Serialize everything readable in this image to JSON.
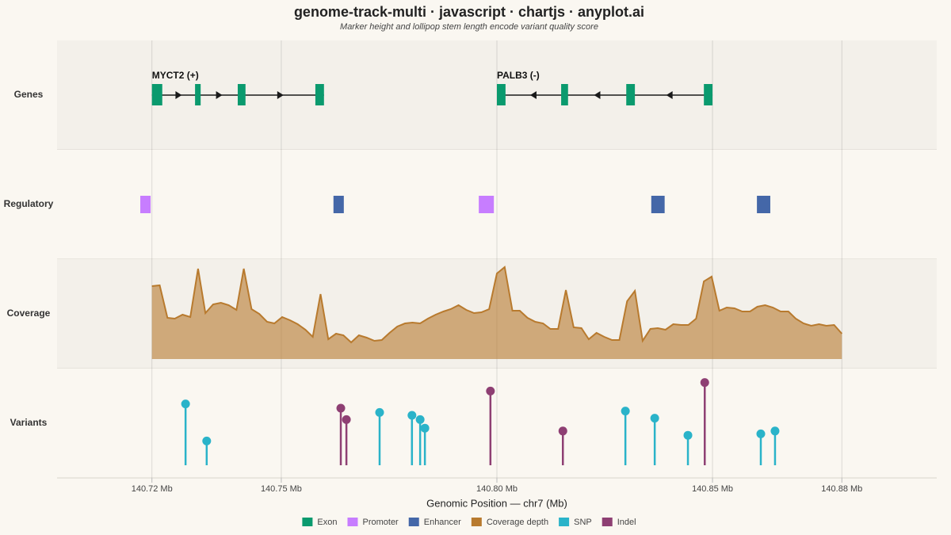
{
  "chart_data": {
    "type": "genome",
    "title": "genome-track-multi · javascript · chartjs · anyplot.ai",
    "subtitle": "Marker height and lollipop stem length encode variant quality score",
    "xlabel": "Genomic Position — chr7 (Mb)",
    "xlim": [
      140.698,
      140.902
    ],
    "xticks": [
      {
        "value": 140.72,
        "label": "140.72 Mb"
      },
      {
        "value": 140.75,
        "label": "140.75 Mb"
      },
      {
        "value": 140.8,
        "label": "140.80 Mb"
      },
      {
        "value": 140.85,
        "label": "140.85 Mb"
      },
      {
        "value": 140.88,
        "label": "140.88 Mb"
      }
    ],
    "grid": true,
    "tracks": [
      "Genes",
      "Regulatory",
      "Coverage",
      "Variants"
    ],
    "genes": [
      {
        "label": "MYCT2 (+)",
        "start": 140.72,
        "end": 140.7599,
        "strand": "+",
        "exons": [
          [
            140.72,
            140.7224
          ],
          [
            140.73,
            140.7313
          ],
          [
            140.7399,
            140.7417
          ],
          [
            140.7579,
            140.7599
          ]
        ]
      },
      {
        "label": "PALB3 (-)",
        "start": 140.8,
        "end": 140.85,
        "strand": "-",
        "exons": [
          [
            140.8,
            140.802
          ],
          [
            140.8149,
            140.8165
          ],
          [
            140.83,
            140.832
          ],
          [
            140.848,
            140.85
          ]
        ]
      }
    ],
    "regulatory": [
      {
        "type": "Promoter",
        "start": 140.7173,
        "end": 140.7197
      },
      {
        "type": "Enhancer",
        "start": 140.7621,
        "end": 140.7645
      },
      {
        "type": "Promoter",
        "start": 140.7958,
        "end": 140.7993
      },
      {
        "type": "Enhancer",
        "start": 140.8358,
        "end": 140.8389
      },
      {
        "type": "Enhancer",
        "start": 140.8603,
        "end": 140.8634
      }
    ],
    "coverage": {
      "name": "Coverage depth",
      "ylim": [
        0,
        125
      ],
      "x": [
        140.72,
        140.7218,
        140.7236,
        140.7253,
        140.7271,
        140.7289,
        140.7307,
        140.7324,
        140.7342,
        140.736,
        140.7378,
        140.7396,
        140.7413,
        140.7431,
        140.7449,
        140.7467,
        140.7484,
        140.7502,
        140.752,
        140.7538,
        140.7556,
        140.7573,
        140.7591,
        140.7609,
        140.7627,
        140.7644,
        140.7662,
        140.768,
        140.7698,
        140.7716,
        140.7733,
        140.7751,
        140.7769,
        140.7787,
        140.7804,
        140.7822,
        140.784,
        140.7858,
        140.7876,
        140.7893,
        140.7911,
        140.7929,
        140.7947,
        140.7964,
        140.7982,
        140.8,
        140.8018,
        140.8036,
        140.8053,
        140.8071,
        140.8089,
        140.8107,
        140.8124,
        140.8142,
        140.816,
        140.8178,
        140.8196,
        140.8213,
        140.8231,
        140.8249,
        140.8267,
        140.8284,
        140.8302,
        140.832,
        140.8338,
        140.8356,
        140.8373,
        140.8391,
        140.8409,
        140.8427,
        140.8444,
        140.8462,
        140.848,
        140.8498,
        140.8516,
        140.8533,
        140.8551,
        140.8569,
        140.8587,
        140.8604,
        140.8622,
        140.864,
        140.8658,
        140.8676,
        140.8693,
        140.8711,
        140.8729,
        140.8747,
        140.8764,
        140.8782,
        140.88
      ],
      "values": [
        92,
        93,
        52,
        51,
        56,
        53,
        114,
        58,
        69,
        71,
        68,
        62,
        114,
        63,
        57,
        47,
        45,
        53,
        49,
        44,
        37,
        28,
        82,
        25,
        32,
        30,
        21,
        30,
        27,
        23,
        24,
        33,
        41,
        45,
        46,
        45,
        51,
        56,
        60,
        63,
        68,
        62,
        58,
        59,
        63,
        108,
        116,
        61,
        61,
        52,
        47,
        45,
        38,
        38,
        87,
        40,
        39,
        25,
        33,
        28,
        24,
        24,
        73,
        86,
        23,
        38,
        39,
        37,
        44,
        43,
        43,
        51,
        98,
        104,
        61,
        65,
        64,
        60,
        60,
        66,
        68,
        65,
        60,
        60,
        51,
        45,
        42,
        44,
        42,
        43,
        32
      ]
    },
    "variants": {
      "ylim": [
        0,
        60
      ],
      "x": [
        140.7278,
        140.7327,
        140.7638,
        140.7651,
        140.7728,
        140.7803,
        140.7822,
        140.7833,
        140.7985,
        140.8153,
        140.8298,
        140.8366,
        140.8443,
        140.8482,
        140.8612,
        140.8645
      ],
      "quality": [
        43,
        17,
        40,
        32,
        37,
        35,
        32,
        26,
        52,
        24,
        38,
        33,
        21,
        58,
        22,
        24
      ],
      "kind": [
        "SNP",
        "SNP",
        "Indel",
        "Indel",
        "SNP",
        "SNP",
        "SNP",
        "SNP",
        "Indel",
        "Indel",
        "SNP",
        "SNP",
        "SNP",
        "Indel",
        "SNP",
        "SNP"
      ]
    },
    "legend": [
      {
        "name": "Exon",
        "color": "#0a9a6e"
      },
      {
        "name": "Promoter",
        "color": "#c77dff"
      },
      {
        "name": "Enhancer",
        "color": "#4467a8"
      },
      {
        "name": "Coverage depth",
        "color": "#b87a2e"
      },
      {
        "name": "SNP",
        "color": "#2ab3c9"
      },
      {
        "name": "Indel",
        "color": "#8e3f73"
      }
    ]
  }
}
